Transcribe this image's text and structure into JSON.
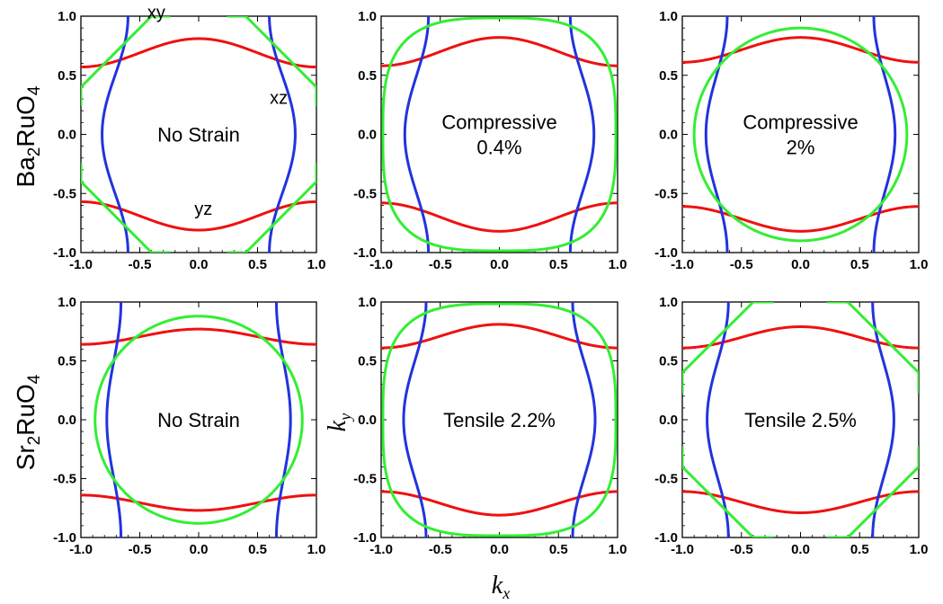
{
  "chart_data": {
    "type": "line",
    "description_axes": {
      "xlabel": "k",
      "xlabel_sub": "x",
      "ylabel": "k",
      "ylabel_sub": "y"
    },
    "xlim": [
      -1.0,
      1.0
    ],
    "ylim": [
      -1.0,
      1.0
    ],
    "ticks": [
      -1.0,
      -0.5,
      0.0,
      0.5,
      1.0
    ],
    "tick_labels": [
      "-1.0",
      "-0.5",
      "0.0",
      "0.5",
      "1.0"
    ],
    "row_labels": [
      {
        "main": "Ba",
        "sub1": "2",
        "mid": "RuO",
        "sub2": "4"
      },
      {
        "main": "Sr",
        "sub1": "2",
        "mid": "RuO",
        "sub2": "4"
      }
    ],
    "series_colors": {
      "xy": "#33ee33",
      "xz": "#2233dd",
      "yz": "#ee1111"
    },
    "band_labels": {
      "xy": "xy",
      "xz": "xz",
      "yz": "yz"
    },
    "panels": [
      {
        "id": "ba-none",
        "lines": [
          "No Strain"
        ],
        "xz": {
          "a": 0.6,
          "b": 0.22
        },
        "yz": {
          "a": 0.57,
          "b": 0.24
        },
        "xy": {
          "kind": "split",
          "a": 0.98,
          "gap": 0.13
        }
      },
      {
        "id": "ba-comp04",
        "lines": [
          "Compressive",
          "0.4%"
        ],
        "xz": {
          "a": 0.6,
          "b": 0.2
        },
        "yz": {
          "a": 0.58,
          "b": 0.24
        },
        "xy": {
          "kind": "diamond",
          "a": 0.985
        }
      },
      {
        "id": "ba-comp2",
        "lines": [
          "Compressive",
          "2%"
        ],
        "xz": {
          "a": 0.62,
          "b": 0.18
        },
        "yz": {
          "a": 0.61,
          "b": 0.21
        },
        "xy": {
          "kind": "circle",
          "a": 0.9
        }
      },
      {
        "id": "sr-none",
        "lines": [
          "No Strain"
        ],
        "xz": {
          "a": 0.66,
          "b": 0.12
        },
        "yz": {
          "a": 0.64,
          "b": 0.13
        },
        "xy": {
          "kind": "circle",
          "a": 0.88
        }
      },
      {
        "id": "sr-tens22",
        "lines": [
          "Tensile 2.2%"
        ],
        "xz": {
          "a": 0.62,
          "b": 0.19
        },
        "yz": {
          "a": 0.61,
          "b": 0.2
        },
        "xy": {
          "kind": "diamond",
          "a": 0.985
        }
      },
      {
        "id": "sr-tens25",
        "lines": [
          "Tensile 2.5%"
        ],
        "xz": {
          "a": 0.61,
          "b": 0.18
        },
        "yz": {
          "a": 0.61,
          "b": 0.18
        },
        "xy": {
          "kind": "split",
          "a": 0.98,
          "gap": 0.12
        }
      }
    ]
  }
}
